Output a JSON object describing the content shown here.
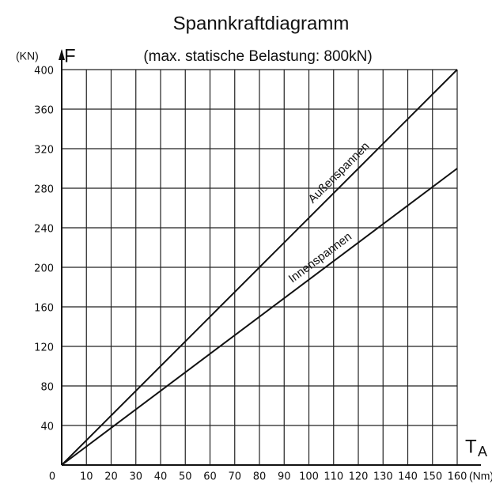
{
  "chart_data": {
    "type": "line",
    "title": "Spannkraftdiagramm",
    "subtitle": "(max. statische Belastung:  800kN)",
    "y_label": "F",
    "y_unit": "(KN)",
    "x_label": "T",
    "x_label_sub": "A",
    "x_unit": "(Nm)",
    "x": [
      0,
      160
    ],
    "series": [
      {
        "name": "Außenspannen",
        "color": "#111111",
        "values": [
          0,
          400
        ]
      },
      {
        "name": "Innenspannen",
        "color": "#111111",
        "values": [
          0,
          300
        ]
      }
    ],
    "xlim": [
      0,
      160
    ],
    "ylim": [
      0,
      400
    ],
    "xticks": [
      0,
      10,
      20,
      30,
      40,
      50,
      60,
      70,
      80,
      90,
      100,
      110,
      120,
      130,
      140,
      150,
      160
    ],
    "yticks": [
      40,
      80,
      120,
      160,
      200,
      240,
      280,
      320,
      360,
      400
    ],
    "grid": true
  }
}
